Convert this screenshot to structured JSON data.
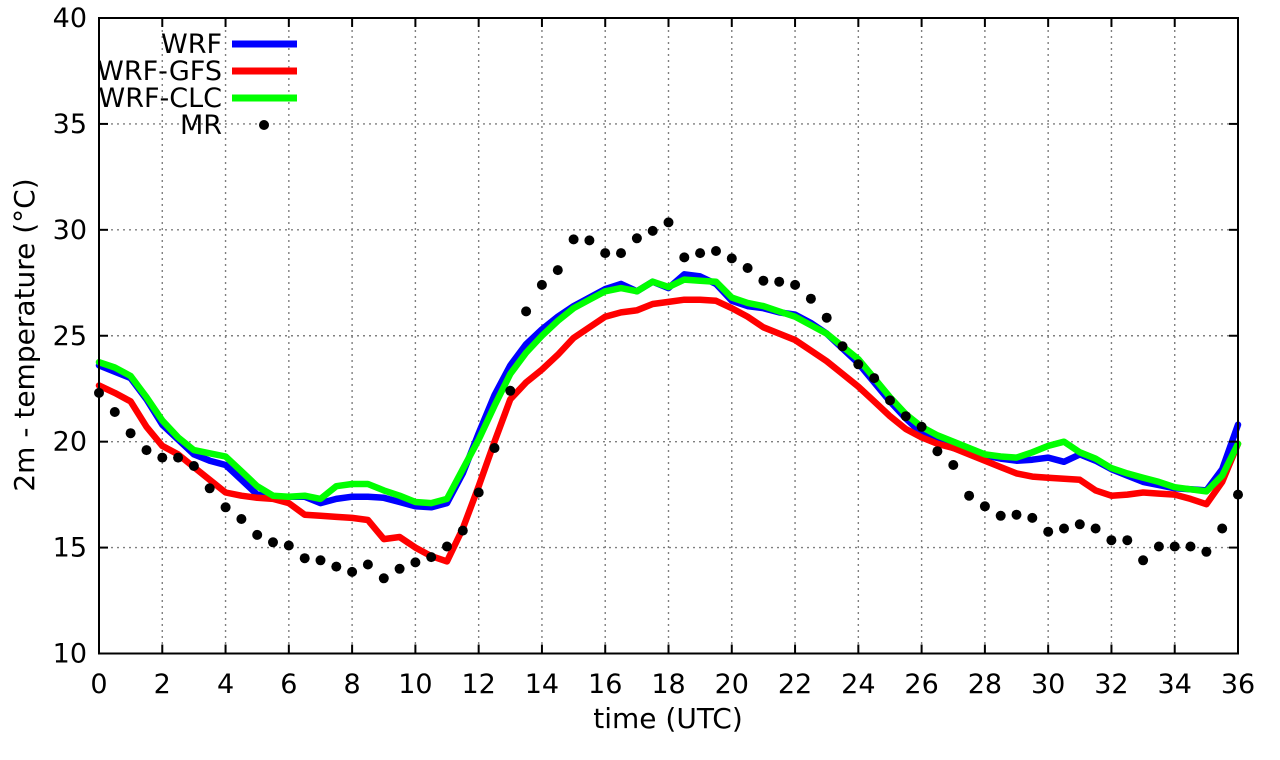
{
  "chart_data": {
    "type": "line",
    "title": "",
    "xlabel": "time (UTC)",
    "ylabel": "2m - temperature (°C)",
    "xlim": [
      0,
      36
    ],
    "ylim": [
      10,
      40
    ],
    "x_ticks": [
      0,
      2,
      4,
      6,
      8,
      10,
      12,
      14,
      16,
      18,
      20,
      22,
      24,
      26,
      28,
      30,
      32,
      34,
      36
    ],
    "y_ticks": [
      10,
      15,
      20,
      25,
      30,
      35,
      40
    ],
    "grid": true,
    "grid_style": "dashed-gray",
    "legend_position": "top-left-inside",
    "x_step": 0.5,
    "series": [
      {
        "name": "WRF",
        "type": "line",
        "color": "#0000ff",
        "values": [
          23.6,
          23.3,
          23.0,
          22.0,
          20.8,
          20.1,
          19.4,
          19.1,
          18.9,
          18.2,
          17.5,
          17.4,
          17.4,
          17.4,
          17.1,
          17.3,
          17.4,
          17.4,
          17.35,
          17.15,
          16.95,
          16.9,
          17.1,
          18.5,
          20.4,
          22.2,
          23.6,
          24.6,
          25.3,
          25.9,
          26.4,
          26.8,
          27.2,
          27.45,
          27.1,
          27.55,
          27.25,
          27.9,
          27.8,
          27.45,
          26.65,
          26.4,
          26.3,
          26.1,
          26.0,
          25.6,
          25.1,
          24.4,
          23.7,
          22.8,
          21.9,
          21.1,
          20.4,
          20.0,
          19.7,
          19.5,
          19.35,
          19.2,
          19.1,
          19.15,
          19.25,
          19.05,
          19.4,
          19.1,
          18.7,
          18.4,
          18.1,
          17.95,
          17.8,
          17.75,
          17.7,
          18.7,
          20.8
        ]
      },
      {
        "name": "WRF-GFS",
        "type": "line",
        "color": "#ff0000",
        "values": [
          22.65,
          22.3,
          21.9,
          20.7,
          19.8,
          19.4,
          18.8,
          18.2,
          17.6,
          17.45,
          17.35,
          17.3,
          17.1,
          16.55,
          16.5,
          16.45,
          16.4,
          16.3,
          15.4,
          15.5,
          15.0,
          14.6,
          14.35,
          15.9,
          17.9,
          20.0,
          22.0,
          22.8,
          23.4,
          24.1,
          24.9,
          25.4,
          25.9,
          26.1,
          26.2,
          26.5,
          26.6,
          26.7,
          26.7,
          26.65,
          26.3,
          25.9,
          25.4,
          25.1,
          24.8,
          24.3,
          23.8,
          23.2,
          22.6,
          21.9,
          21.2,
          20.6,
          20.2,
          19.9,
          19.7,
          19.4,
          19.1,
          18.8,
          18.5,
          18.35,
          18.3,
          18.25,
          18.2,
          17.7,
          17.45,
          17.5,
          17.6,
          17.55,
          17.5,
          17.3,
          17.05,
          18.1,
          19.9
        ]
      },
      {
        "name": "WRF-CLC",
        "type": "line",
        "color": "#00ff00",
        "values": [
          23.75,
          23.5,
          23.1,
          22.1,
          21.0,
          20.2,
          19.6,
          19.45,
          19.3,
          18.6,
          17.9,
          17.45,
          17.4,
          17.45,
          17.3,
          17.9,
          18.0,
          18.0,
          17.7,
          17.45,
          17.15,
          17.1,
          17.3,
          18.7,
          20.1,
          21.7,
          23.2,
          24.2,
          25.0,
          25.7,
          26.3,
          26.7,
          27.1,
          27.25,
          27.1,
          27.55,
          27.3,
          27.65,
          27.6,
          27.55,
          26.8,
          26.55,
          26.4,
          26.15,
          25.9,
          25.5,
          25.1,
          24.5,
          23.9,
          23.0,
          22.1,
          21.3,
          20.7,
          20.3,
          20.0,
          19.7,
          19.4,
          19.3,
          19.25,
          19.5,
          19.8,
          20.0,
          19.5,
          19.2,
          18.75,
          18.5,
          18.3,
          18.1,
          17.85,
          17.75,
          17.65,
          18.4,
          19.9
        ]
      },
      {
        "name": "MR",
        "type": "points",
        "color": "#000000",
        "values": [
          22.3,
          21.4,
          20.4,
          19.6,
          19.25,
          19.25,
          18.85,
          17.8,
          16.9,
          16.35,
          15.6,
          15.25,
          15.1,
          14.5,
          14.4,
          14.1,
          13.85,
          14.2,
          13.55,
          14.0,
          14.3,
          14.55,
          15.05,
          15.8,
          17.6,
          19.7,
          22.4,
          26.15,
          27.4,
          28.1,
          29.55,
          29.5,
          28.9,
          28.9,
          29.6,
          29.95,
          30.35,
          28.7,
          28.9,
          29.0,
          28.65,
          28.2,
          27.6,
          27.55,
          27.4,
          26.75,
          25.85,
          24.5,
          23.65,
          23.0,
          21.95,
          21.2,
          20.7,
          19.55,
          18.9,
          17.45,
          16.95,
          16.5,
          16.55,
          16.4,
          15.75,
          15.9,
          16.1,
          15.9,
          15.35,
          15.35,
          14.4,
          15.05,
          15.05,
          15.05,
          14.8,
          15.9,
          17.5
        ]
      }
    ]
  },
  "colors": {
    "background": "#ffffff",
    "axis": "#000000",
    "grid": "#7f7f7f",
    "text": "#000000",
    "wrf": "#0000ff",
    "wrf_gfs": "#ff0000",
    "wrf_clc": "#00ff00",
    "mr": "#000000"
  }
}
